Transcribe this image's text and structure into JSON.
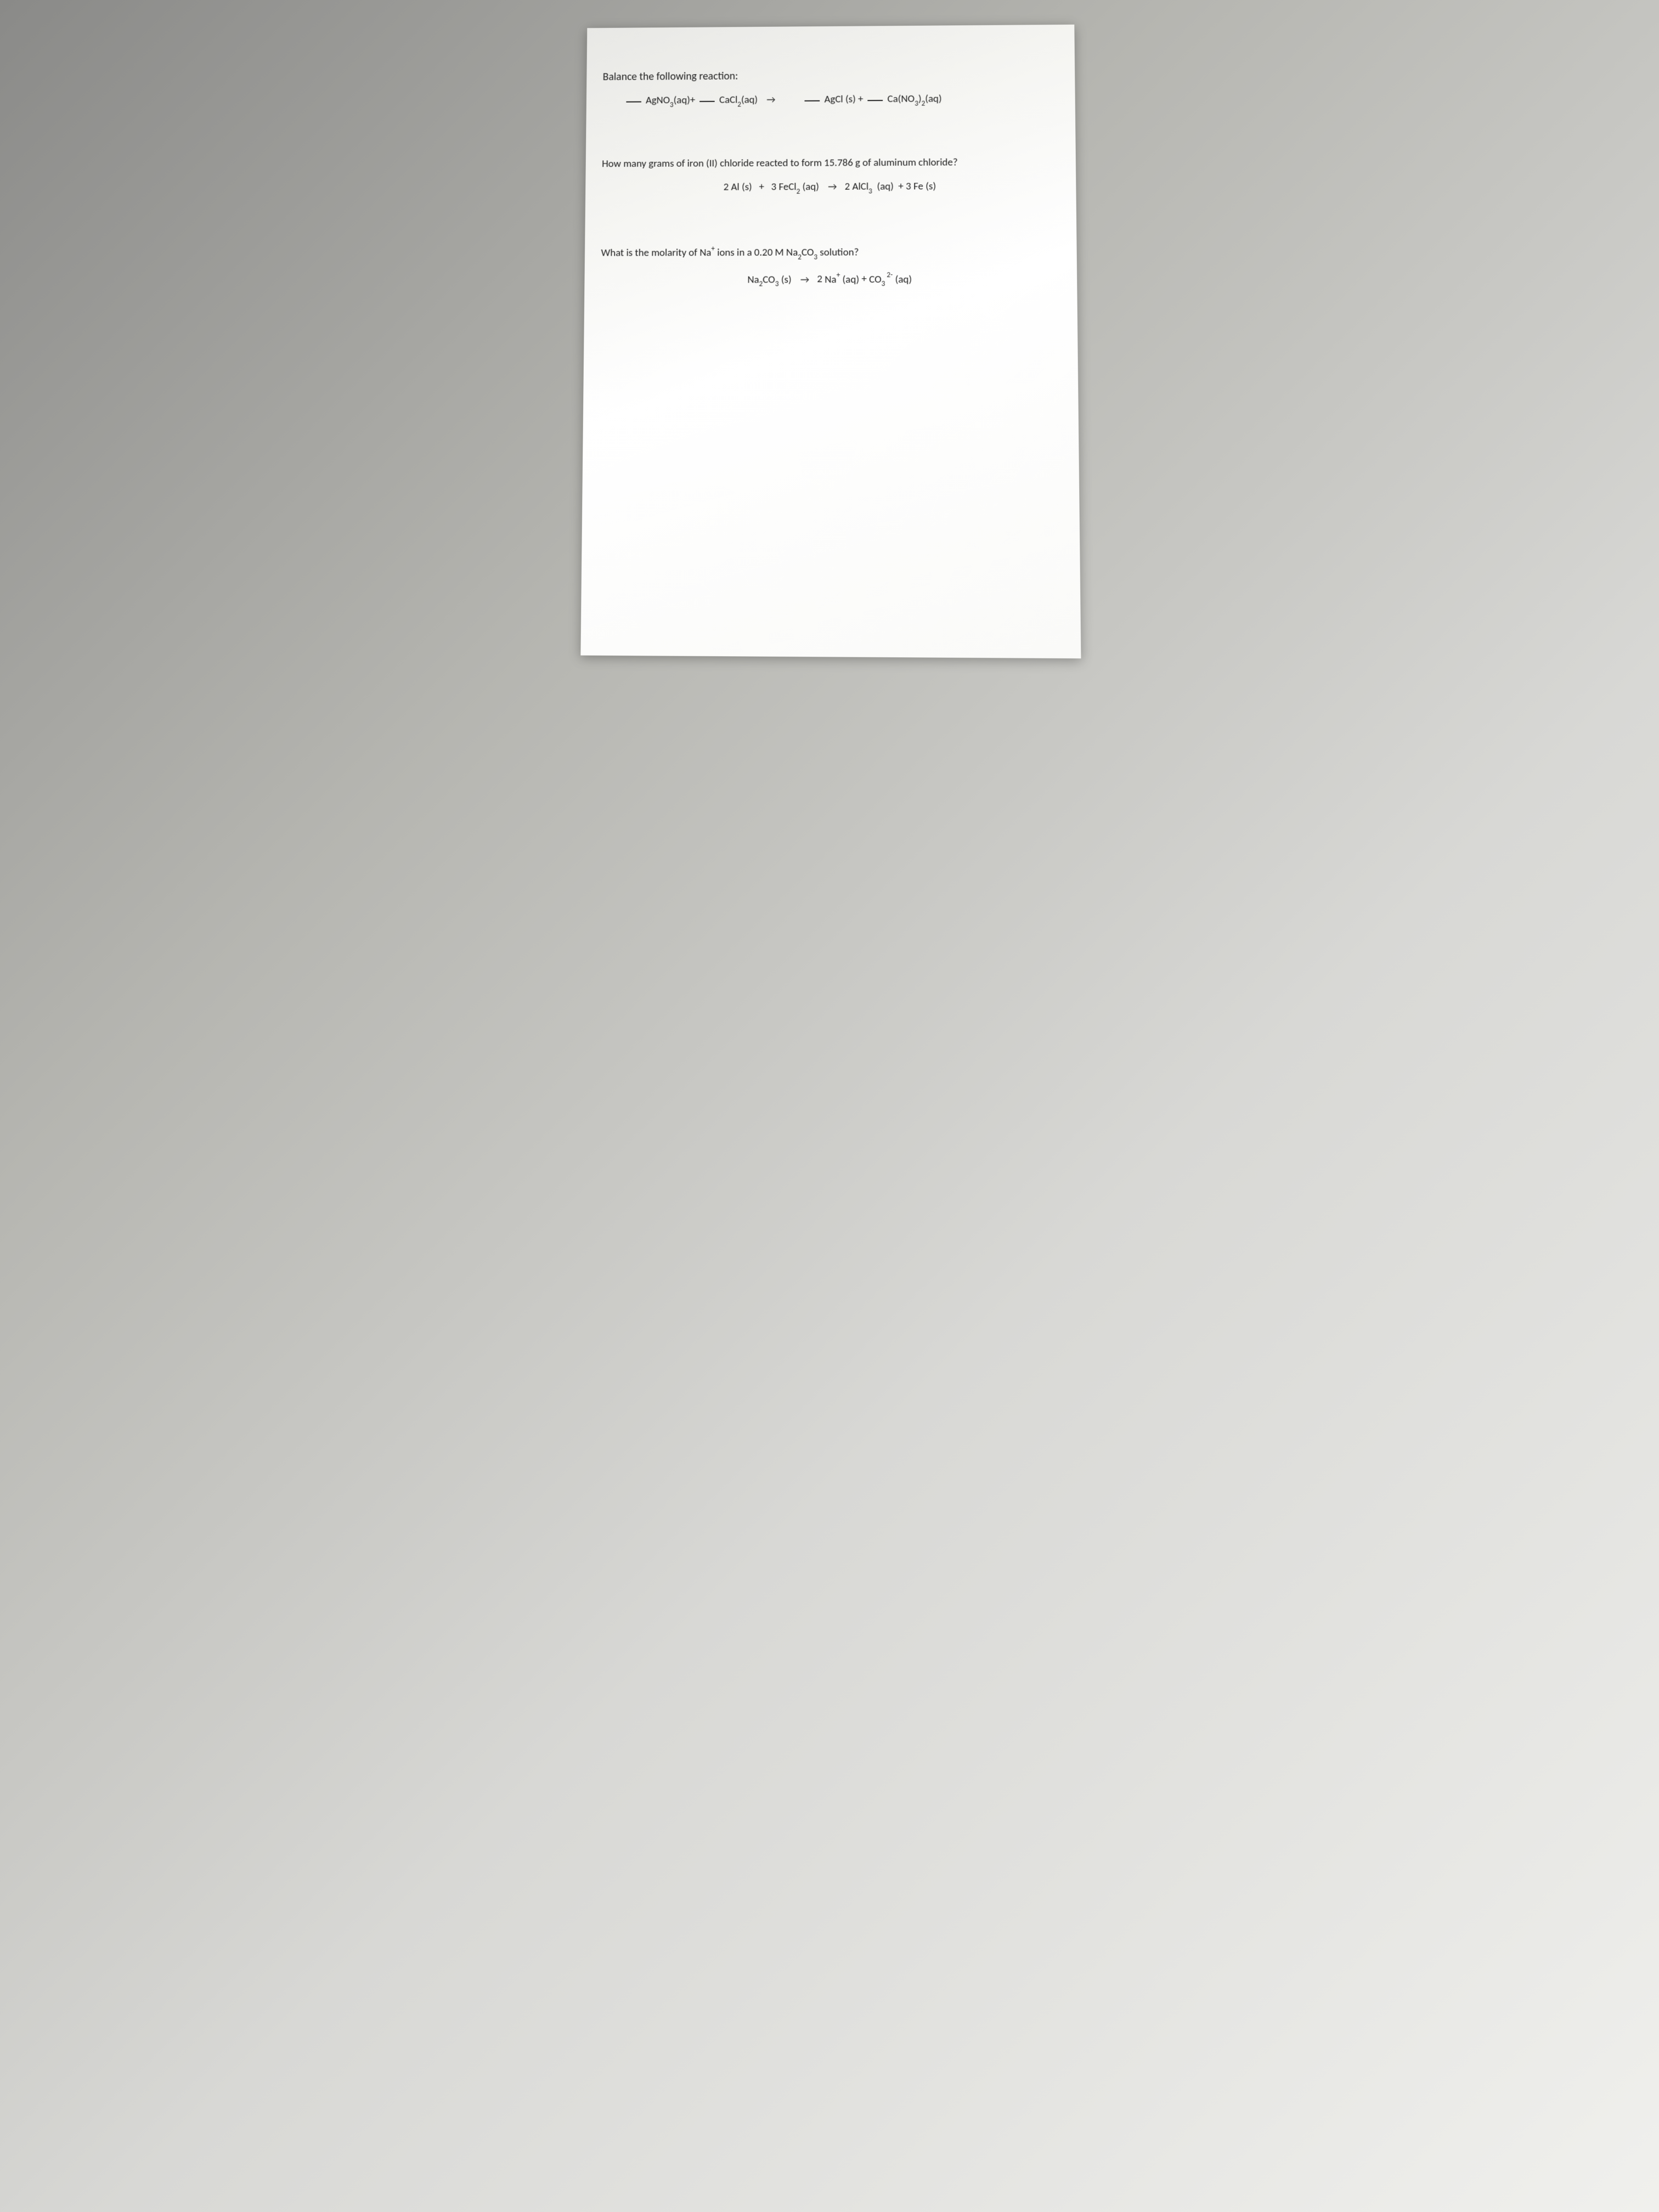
{
  "page": {
    "background_gradient": [
      "#8a8a88",
      "#f0f0ed"
    ],
    "paper_color": "#ffffff",
    "text_color": "#1a1a1a",
    "font_family": "Calibri",
    "base_fontsize": 19
  },
  "question1": {
    "prompt": "Balance the following reaction:",
    "reactant1": "AgNO",
    "reactant1_sub": "3",
    "reactant1_state": "(aq)",
    "plus1": "+",
    "reactant2": "CaCl",
    "reactant2_sub": "2",
    "reactant2_state": "(aq)",
    "arrow": "→",
    "product1": "AgCl (s)",
    "plus2": "+",
    "product2_pre": "Ca(NO",
    "product2_sub1": "3",
    "product2_mid": ")",
    "product2_sub2": "2",
    "product2_state": "(aq)"
  },
  "question2": {
    "prompt": "How many grams of iron (II) chloride reacted to form 15.786 g of aluminum chloride?",
    "coef1": "2",
    "species1": "Al (s)",
    "plus1": "+",
    "coef2": "3",
    "species2_pre": "FeCl",
    "species2_sub": "2",
    "species2_state": "(aq)",
    "arrow": "→",
    "coef3": "2",
    "species3_pre": "AlCl",
    "species3_sub": "3",
    "species3_state": "(aq)",
    "plus2": "+",
    "coef4": "3",
    "species4": "Fe (s)"
  },
  "question3": {
    "prompt_pre": "What is the molarity of Na",
    "prompt_sup": "+",
    "prompt_mid": " ions in a 0.20 M Na",
    "prompt_sub1": "2",
    "prompt_mid2": "CO",
    "prompt_sub2": "3",
    "prompt_post": " solution?",
    "species1_pre": "Na",
    "species1_sub1": "2",
    "species1_mid": "CO",
    "species1_sub2": "3",
    "species1_state": "(s)",
    "arrow": "→",
    "coef2": "2",
    "species2_pre": "Na",
    "species2_sup": "+",
    "species2_state": "(aq)",
    "plus": "+",
    "species3_pre": "CO",
    "species3_sub": "3",
    "species3_sup": " 2-",
    "species3_state": "(aq)"
  }
}
